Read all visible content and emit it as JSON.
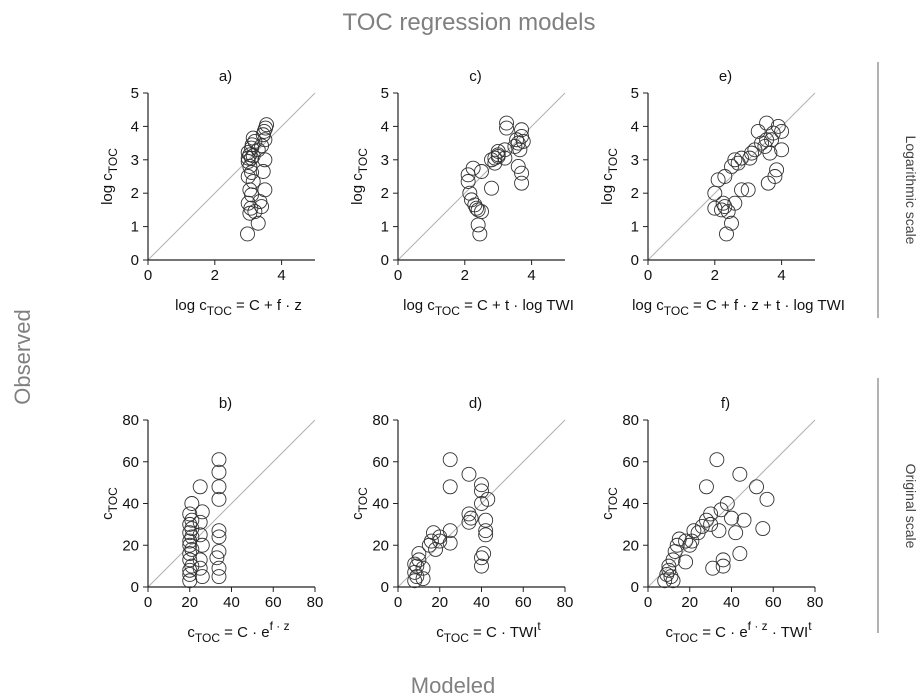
{
  "figure": {
    "title": "TOC regression models",
    "xlabel_common": "Modeled",
    "ylabel_common": "Observed",
    "row_labels": [
      "Logarithmic scale",
      "Original scale"
    ]
  },
  "chart_data": [
    {
      "type": "scatter",
      "panel": "a)",
      "xlabel": {
        "pre": "log c",
        "sub": "TOC",
        "post": " = C + f · z"
      },
      "ylabel": {
        "pre": "log c",
        "sub": "TOC"
      },
      "xlim": [
        0,
        5
      ],
      "ylim": [
        0,
        5
      ],
      "xticks": [
        0,
        2,
        4
      ],
      "yticks": [
        0,
        1,
        2,
        3,
        4,
        5
      ],
      "points": [
        [
          2.98,
          0.78
        ],
        [
          3.05,
          1.4
        ],
        [
          3.08,
          1.55
        ],
        [
          3.0,
          1.7
        ],
        [
          3.1,
          1.95
        ],
        [
          3.05,
          2.1
        ],
        [
          3.15,
          2.35
        ],
        [
          3.0,
          2.5
        ],
        [
          3.1,
          2.62
        ],
        [
          3.05,
          2.8
        ],
        [
          3.0,
          2.95
        ],
        [
          3.1,
          3.05
        ],
        [
          3.15,
          3.12
        ],
        [
          3.0,
          3.22
        ],
        [
          3.1,
          3.35
        ],
        [
          3.12,
          3.45
        ],
        [
          3.2,
          3.55
        ],
        [
          3.15,
          3.65
        ],
        [
          3.0,
          3.05
        ],
        [
          3.05,
          3.15
        ],
        [
          3.3,
          3.3
        ],
        [
          3.4,
          3.42
        ],
        [
          3.5,
          3.6
        ],
        [
          3.45,
          3.75
        ],
        [
          3.52,
          3.95
        ],
        [
          3.55,
          4.05
        ],
        [
          3.48,
          3.85
        ],
        [
          3.3,
          1.1
        ],
        [
          3.4,
          1.6
        ],
        [
          3.5,
          2.1
        ],
        [
          3.45,
          2.65
        ],
        [
          3.5,
          3.0
        ],
        [
          3.35,
          1.75
        ],
        [
          3.2,
          1.45
        ]
      ]
    },
    {
      "type": "scatter",
      "panel": "b)",
      "xlabel": {
        "pre": "c",
        "sub": "TOC",
        "post": " = C · e",
        "sup": "f · z"
      },
      "ylabel": {
        "pre": "c",
        "sub": "TOC"
      },
      "xlim": [
        0,
        80
      ],
      "ylim": [
        0,
        80
      ],
      "xticks": [
        0,
        20,
        40,
        60,
        80
      ],
      "yticks": [
        0,
        20,
        40,
        60,
        80
      ],
      "points": [
        [
          20,
          3
        ],
        [
          20,
          6
        ],
        [
          20,
          8
        ],
        [
          21,
          10
        ],
        [
          20,
          13
        ],
        [
          20,
          16
        ],
        [
          21,
          18
        ],
        [
          20,
          20
        ],
        [
          20,
          22
        ],
        [
          21,
          24
        ],
        [
          20,
          26
        ],
        [
          21,
          28
        ],
        [
          20,
          30
        ],
        [
          21,
          32
        ],
        [
          20,
          35
        ],
        [
          21,
          40
        ],
        [
          25,
          48
        ],
        [
          26,
          36
        ],
        [
          25,
          31
        ],
        [
          25,
          25
        ],
        [
          26,
          20
        ],
        [
          25,
          13
        ],
        [
          25,
          9
        ],
        [
          26,
          5
        ],
        [
          34,
          61
        ],
        [
          34,
          55
        ],
        [
          34,
          48
        ],
        [
          34,
          42
        ],
        [
          34,
          27
        ],
        [
          34,
          24
        ],
        [
          34,
          17
        ],
        [
          33,
          14
        ],
        [
          34,
          9
        ],
        [
          34,
          5
        ]
      ]
    },
    {
      "type": "scatter",
      "panel": "c)",
      "xlabel": {
        "pre": "log c",
        "sub": "TOC",
        "post": " = C + t · log TWI"
      },
      "ylabel": {
        "pre": "log c",
        "sub": "TOC"
      },
      "xlim": [
        0,
        5
      ],
      "ylim": [
        0,
        5
      ],
      "xticks": [
        0,
        2,
        4
      ],
      "yticks": [
        0,
        1,
        2,
        3,
        4,
        5
      ],
      "points": [
        [
          2.1,
          2.55
        ],
        [
          2.1,
          2.35
        ],
        [
          2.15,
          2.0
        ],
        [
          2.2,
          1.8
        ],
        [
          2.25,
          2.75
        ],
        [
          2.3,
          1.65
        ],
        [
          2.35,
          1.55
        ],
        [
          2.4,
          1.5
        ],
        [
          2.5,
          1.45
        ],
        [
          2.45,
          0.78
        ],
        [
          2.4,
          1.05
        ],
        [
          2.5,
          2.65
        ],
        [
          2.8,
          2.15
        ],
        [
          2.8,
          3.0
        ],
        [
          2.9,
          3.05
        ],
        [
          3.0,
          3.15
        ],
        [
          3.0,
          3.25
        ],
        [
          2.9,
          2.9
        ],
        [
          3.2,
          3.3
        ],
        [
          3.25,
          3.95
        ],
        [
          3.25,
          4.1
        ],
        [
          3.2,
          3.05
        ],
        [
          3.5,
          3.4
        ],
        [
          3.55,
          3.6
        ],
        [
          3.6,
          3.5
        ],
        [
          3.65,
          3.3
        ],
        [
          3.7,
          3.7
        ],
        [
          3.7,
          3.9
        ],
        [
          3.75,
          3.55
        ],
        [
          3.7,
          2.6
        ],
        [
          3.7,
          2.3
        ],
        [
          3.6,
          2.8
        ],
        [
          3.0,
          3.1
        ]
      ]
    },
    {
      "type": "scatter",
      "panel": "d)",
      "xlabel": {
        "pre": "c",
        "sub": "TOC",
        "post": " = C · TWI",
        "sup": "t"
      },
      "ylabel": {
        "pre": "c",
        "sub": "TOC"
      },
      "xlim": [
        0,
        80
      ],
      "ylim": [
        0,
        80
      ],
      "xticks": [
        0,
        20,
        40,
        60,
        80
      ],
      "yticks": [
        0,
        20,
        40,
        60,
        80
      ],
      "points": [
        [
          8,
          3
        ],
        [
          9,
          5
        ],
        [
          8,
          7
        ],
        [
          9,
          10
        ],
        [
          10,
          13
        ],
        [
          10,
          16
        ],
        [
          8,
          11
        ],
        [
          12,
          4
        ],
        [
          12,
          9
        ],
        [
          15,
          20
        ],
        [
          16,
          22
        ],
        [
          17,
          26
        ],
        [
          18,
          18
        ],
        [
          20,
          22
        ],
        [
          20,
          24
        ],
        [
          25,
          21
        ],
        [
          25,
          27
        ],
        [
          25,
          48
        ],
        [
          25,
          61
        ],
        [
          34,
          54
        ],
        [
          34,
          35
        ],
        [
          34,
          31
        ],
        [
          35,
          33
        ],
        [
          40,
          49
        ],
        [
          40,
          46
        ],
        [
          40,
          40
        ],
        [
          41,
          16
        ],
        [
          40,
          14
        ],
        [
          40,
          10
        ],
        [
          42,
          32
        ],
        [
          42,
          27
        ],
        [
          42,
          25
        ],
        [
          43,
          42
        ]
      ]
    },
    {
      "type": "scatter",
      "panel": "e)",
      "xlabel": {
        "pre": "log c",
        "sub": "TOC",
        "post": " = C + f · z + t · log TWI"
      },
      "ylabel": {
        "pre": "log c",
        "sub": "TOC"
      },
      "xlim": [
        0,
        5
      ],
      "ylim": [
        0,
        5
      ],
      "xticks": [
        0,
        2,
        4
      ],
      "yticks": [
        0,
        1,
        2,
        3,
        4,
        5
      ],
      "points": [
        [
          2.0,
          1.55
        ],
        [
          2.0,
          2.0
        ],
        [
          2.1,
          2.4
        ],
        [
          2.2,
          1.5
        ],
        [
          2.25,
          1.7
        ],
        [
          2.3,
          1.6
        ],
        [
          2.35,
          0.78
        ],
        [
          2.4,
          1.45
        ],
        [
          2.5,
          1.1
        ],
        [
          2.6,
          1.7
        ],
        [
          2.3,
          2.5
        ],
        [
          2.5,
          2.8
        ],
        [
          2.6,
          3.0
        ],
        [
          2.7,
          2.9
        ],
        [
          2.8,
          3.05
        ],
        [
          2.8,
          2.1
        ],
        [
          3.0,
          2.1
        ],
        [
          3.05,
          3.05
        ],
        [
          3.1,
          3.2
        ],
        [
          3.2,
          3.3
        ],
        [
          3.3,
          3.85
        ],
        [
          3.4,
          3.5
        ],
        [
          3.5,
          3.4
        ],
        [
          3.55,
          3.6
        ],
        [
          3.55,
          4.1
        ],
        [
          3.6,
          2.3
        ],
        [
          3.65,
          3.2
        ],
        [
          3.7,
          3.6
        ],
        [
          3.75,
          3.8
        ],
        [
          3.8,
          2.5
        ],
        [
          3.85,
          2.7
        ],
        [
          3.9,
          4.0
        ],
        [
          4.0,
          3.85
        ],
        [
          4.0,
          3.3
        ]
      ]
    },
    {
      "type": "scatter",
      "panel": "f)",
      "xlabel": {
        "pre": "c",
        "sub": "TOC",
        "post": " = C · e",
        "sup": "f · z",
        "post2": " · TWI",
        "sup2": "t"
      },
      "ylabel": {
        "pre": "c",
        "sub": "TOC"
      },
      "xlim": [
        0,
        80
      ],
      "ylim": [
        0,
        80
      ],
      "xticks": [
        0,
        20,
        40,
        60,
        80
      ],
      "yticks": [
        0,
        20,
        40,
        60,
        80
      ],
      "points": [
        [
          8,
          3
        ],
        [
          9,
          6
        ],
        [
          10,
          10
        ],
        [
          11,
          5
        ],
        [
          12,
          3
        ],
        [
          10,
          8
        ],
        [
          12,
          13
        ],
        [
          13,
          17
        ],
        [
          14,
          20
        ],
        [
          15,
          23
        ],
        [
          18,
          22
        ],
        [
          18,
          12
        ],
        [
          20,
          20
        ],
        [
          21,
          22
        ],
        [
          22,
          27
        ],
        [
          24,
          26
        ],
        [
          26,
          29
        ],
        [
          28,
          32
        ],
        [
          28,
          48
        ],
        [
          30,
          30
        ],
        [
          30,
          35
        ],
        [
          31,
          9
        ],
        [
          33,
          61
        ],
        [
          34,
          27
        ],
        [
          35,
          37
        ],
        [
          36,
          13
        ],
        [
          36,
          10
        ],
        [
          38,
          40
        ],
        [
          40,
          33
        ],
        [
          42,
          26
        ],
        [
          44,
          16
        ],
        [
          44,
          54
        ],
        [
          46,
          32
        ],
        [
          52,
          48
        ],
        [
          55,
          28
        ],
        [
          57,
          42
        ]
      ]
    }
  ]
}
